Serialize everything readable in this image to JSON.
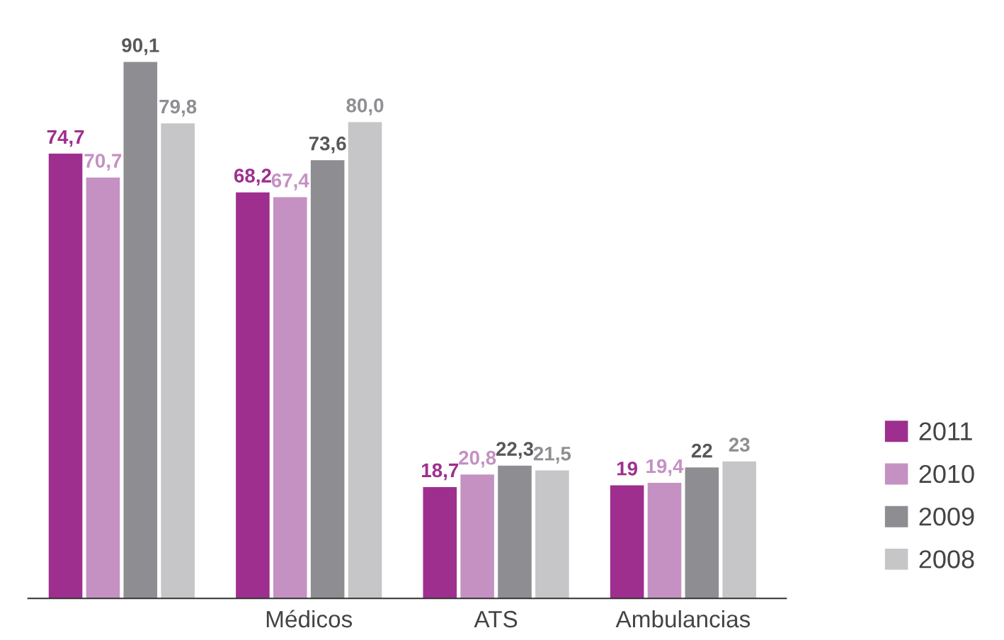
{
  "chart_data": {
    "type": "bar",
    "categories": [
      null,
      "Médicos",
      "ATS",
      "Ambulancias"
    ],
    "series": [
      {
        "name": "2011",
        "color": "#9e2f8e",
        "values": [
          74.7,
          68.2,
          18.7,
          19
        ],
        "value_labels": [
          "74,7",
          "68,2",
          "18,7",
          "19"
        ]
      },
      {
        "name": "2010",
        "color": "#c491c2",
        "values": [
          70.7,
          67.4,
          20.8,
          19.4
        ],
        "value_labels": [
          "70,7",
          "67,4",
          "20,8",
          "19,4"
        ]
      },
      {
        "name": "2009",
        "color": "#8e8e92",
        "values": [
          90.1,
          73.6,
          22.3,
          22
        ],
        "value_labels": [
          "90,1",
          "73,6",
          "22,3",
          "22"
        ]
      },
      {
        "name": "2008",
        "color": "#c6c6c8",
        "values": [
          79.8,
          80.0,
          21.5,
          23
        ],
        "value_labels": [
          "79,8",
          "80,0",
          "21,5",
          "23"
        ]
      }
    ],
    "legend": "right",
    "grid": false,
    "tick_labels": "x"
  }
}
